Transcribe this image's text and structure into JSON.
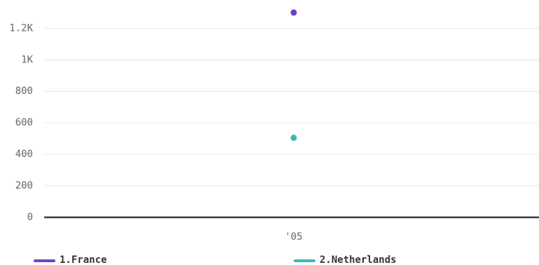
{
  "chart_data": {
    "type": "scatter",
    "categories": [
      "'05"
    ],
    "series": [
      {
        "name": "1.France",
        "values": [
          1300
        ],
        "color": "#6f42c1"
      },
      {
        "name": "2.Netherlands",
        "values": [
          505
        ],
        "color": "#3cb8b8"
      }
    ],
    "y_ticks": [
      {
        "value": 0,
        "label": "0"
      },
      {
        "value": 200,
        "label": "200"
      },
      {
        "value": 400,
        "label": "400"
      },
      {
        "value": 600,
        "label": "600"
      },
      {
        "value": 800,
        "label": "800"
      },
      {
        "value": 1000,
        "label": "1K"
      },
      {
        "value": 1200,
        "label": "1.2K"
      }
    ],
    "ylim": [
      0,
      1300
    ],
    "grid": true,
    "legend": "bottom",
    "colors": {
      "grid": "#e6e6e6",
      "baseline": "#333d47",
      "tick_text": "#666666",
      "legend_text": "#333333"
    }
  }
}
